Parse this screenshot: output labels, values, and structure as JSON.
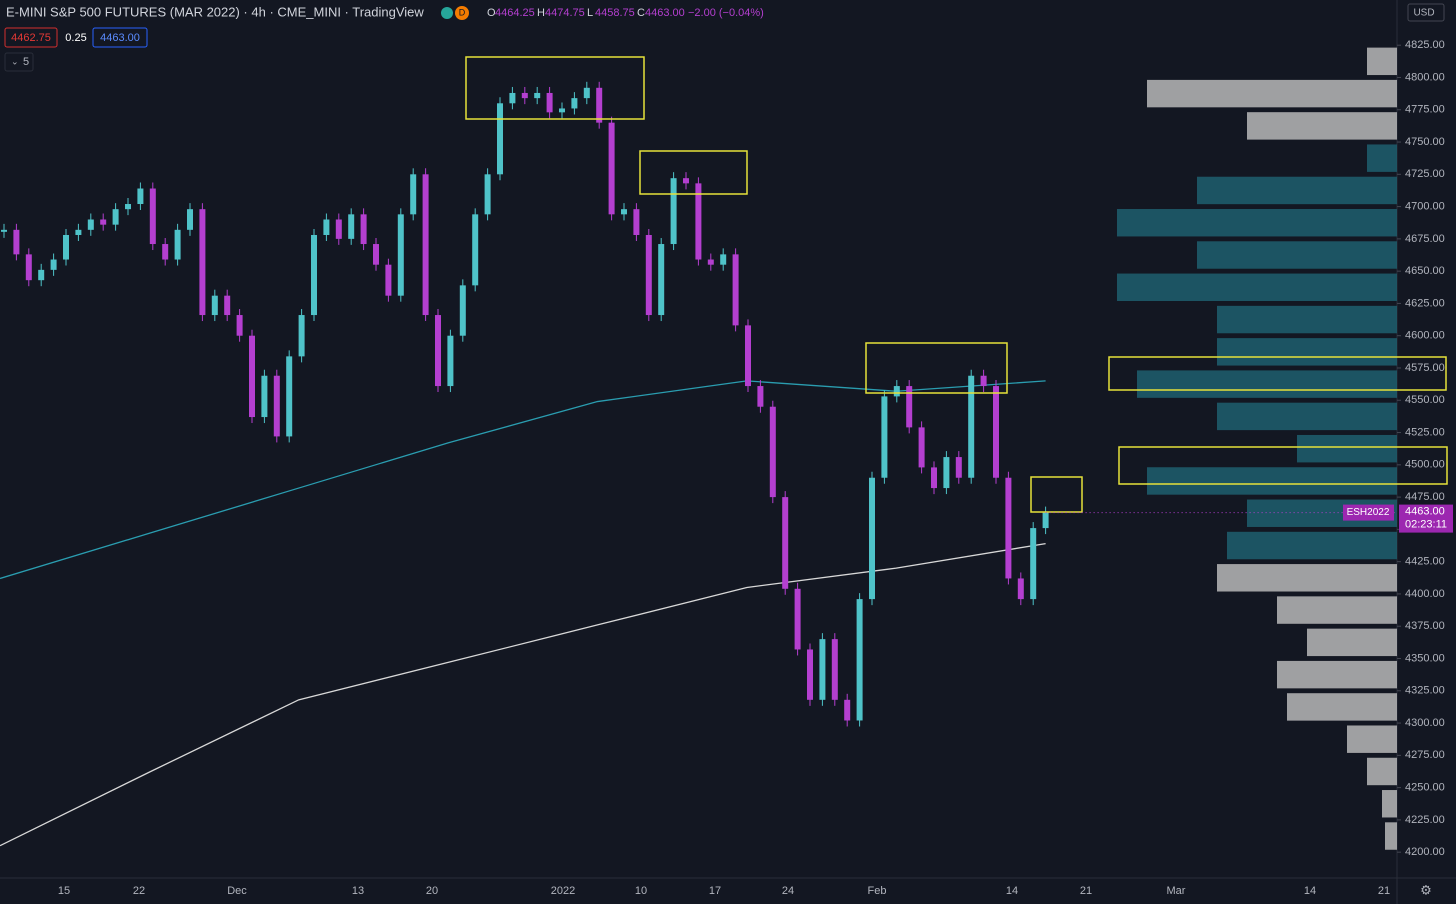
{
  "header": {
    "title": "E-MINI S&P 500 FUTURES (MAR 2022) · 4h · CME_MINI · TradingView",
    "badge": "D",
    "ohlc": [
      {
        "key": "O",
        "value": "4464.25"
      },
      {
        "key": "H",
        "value": "4474.75"
      },
      {
        "key": "L",
        "value": "4458.75"
      },
      {
        "key": "C",
        "value": "4463.00"
      }
    ],
    "change": "−2.00 (−0.04%)",
    "bid": "4462.75",
    "spread": "0.25",
    "ask": "4463.00",
    "indicators": "5",
    "currency": "USD"
  },
  "chart": {
    "type": "candlestick",
    "up_color": "#4fc3c9",
    "down_color": "#b43fd0",
    "closes": [
      4682,
      4663,
      4643,
      4651,
      4659,
      4678,
      4682,
      4690,
      4686,
      4698,
      4702,
      4714,
      4671,
      4659,
      4682,
      4698,
      4616,
      4631,
      4616,
      4600,
      4537,
      4569,
      4522,
      4584,
      4616,
      4678,
      4690,
      4675,
      4694,
      4671,
      4655,
      4631,
      4694,
      4725,
      4616,
      4561,
      4600,
      4639,
      4694,
      4725,
      4780,
      4788,
      4784,
      4788,
      4773,
      4776,
      4784,
      4792,
      4765,
      4694,
      4698,
      4678,
      4616,
      4671,
      4722,
      4718,
      4659,
      4655,
      4663,
      4608,
      4561,
      4545,
      4475,
      4404,
      4357,
      4318,
      4365,
      4318,
      4302,
      4396,
      4490,
      4553,
      4561,
      4529,
      4498,
      4482,
      4506,
      4490,
      4569,
      4561,
      4490,
      4412,
      4396,
      4451,
      4463
    ],
    "moving_averages": [
      {
        "color": "#2a9db0",
        "values": [
          4412,
          4447,
          4482,
          4517,
          4549,
          4565,
          4557,
          4565
        ]
      },
      {
        "color": "#d8d8d8",
        "values": [
          4205,
          4262,
          4318,
          4347,
          4376,
          4405,
          4420,
          4439
        ]
      }
    ],
    "profile": {
      "value_area_color": "#1e5f6e",
      "outside_color": "#b9b9b9",
      "prices": [
        4212.5,
        4237.5,
        4262.5,
        4287.5,
        4312.5,
        4337.5,
        4362.5,
        4387.5,
        4412.5,
        4437.5,
        4462.5,
        4487.5,
        4512.5,
        4537.5,
        4562.5,
        4587.5,
        4612.5,
        4637.5,
        4662.5,
        4687.5,
        4712.5,
        4737.5,
        4762.5,
        4787.5,
        4812.5
      ],
      "volumes": [
        12,
        15,
        30,
        50,
        110,
        120,
        90,
        120,
        180,
        170,
        150,
        250,
        100,
        180,
        260,
        180,
        180,
        280,
        200,
        280,
        200,
        30,
        150,
        250,
        30
      ],
      "in_value_area": [
        false,
        false,
        false,
        false,
        false,
        false,
        false,
        false,
        false,
        true,
        true,
        true,
        true,
        true,
        true,
        true,
        true,
        true,
        true,
        true,
        true,
        true,
        false,
        false,
        false
      ]
    },
    "ylim": [
      4180,
      4860
    ],
    "yticks": [
      {
        "value": 4200,
        "label": "4200.00"
      },
      {
        "value": 4225,
        "label": "4225.00"
      },
      {
        "value": 4250,
        "label": "4250.00"
      },
      {
        "value": 4275,
        "label": "4275.00"
      },
      {
        "value": 4300,
        "label": "4300.00"
      },
      {
        "value": 4325,
        "label": "4325.00"
      },
      {
        "value": 4350,
        "label": "4350.00"
      },
      {
        "value": 4375,
        "label": "4375.00"
      },
      {
        "value": 4400,
        "label": "4400.00"
      },
      {
        "value": 4425,
        "label": "4425.00"
      },
      {
        "value": 4450,
        "label": "4450.00"
      },
      {
        "value": 4475,
        "label": "4475.00"
      },
      {
        "value": 4500,
        "label": "4500.00"
      },
      {
        "value": 4525,
        "label": "4525.00"
      },
      {
        "value": 4550,
        "label": "4550.00"
      },
      {
        "value": 4575,
        "label": "4575.00"
      },
      {
        "value": 4600,
        "label": "4600.00"
      },
      {
        "value": 4625,
        "label": "4625.00"
      },
      {
        "value": 4650,
        "label": "4650.00"
      },
      {
        "value": 4675,
        "label": "4675.00"
      },
      {
        "value": 4700,
        "label": "4700.00"
      },
      {
        "value": 4725,
        "label": "4725.00"
      },
      {
        "value": 4750,
        "label": "4750.00"
      },
      {
        "value": 4775,
        "label": "4775.00"
      },
      {
        "value": 4800,
        "label": "4800.00"
      },
      {
        "value": 4825,
        "label": "4825.00"
      }
    ],
    "time_labels": [
      "15",
      "22",
      "Dec",
      "13",
      "20",
      "2022",
      "10",
      "17",
      "24",
      "Feb",
      "14",
      "21",
      "Mar",
      "14",
      "21"
    ],
    "symbol_tag": "ESH2022",
    "last_price": "4463.00",
    "countdown": "02:23:11"
  }
}
